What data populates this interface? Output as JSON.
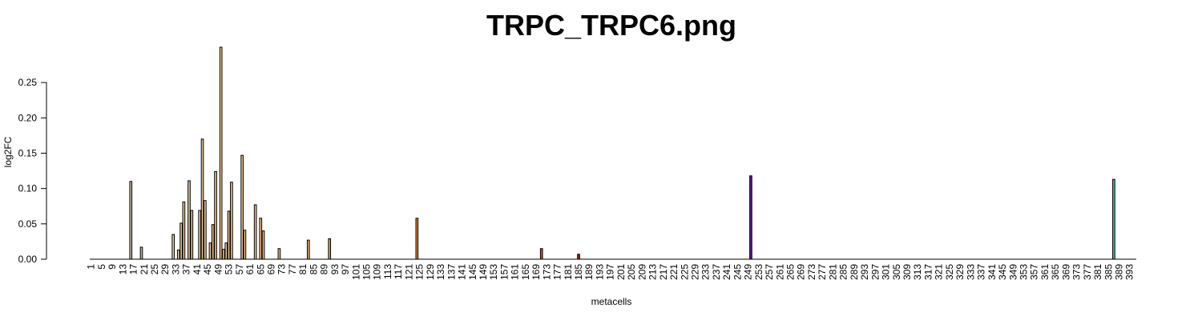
{
  "chart_data": {
    "type": "bar",
    "title": "TRPC_TRPC6.png",
    "xlabel": "metacells",
    "ylabel": "log2FC",
    "n_categories": 395,
    "x_tick_labels": [
      "1",
      "5",
      "9",
      "13",
      "17",
      "21",
      "25",
      "29",
      "33",
      "37",
      "41",
      "45",
      "49",
      "53",
      "57",
      "61",
      "65",
      "69",
      "73",
      "77",
      "81",
      "85",
      "89",
      "93",
      "97",
      "101",
      "105",
      "109",
      "113",
      "117",
      "121",
      "125",
      "129",
      "133",
      "137",
      "141",
      "145",
      "149",
      "153",
      "157",
      "161",
      "165",
      "169",
      "173",
      "177",
      "181",
      "185",
      "189",
      "193",
      "197",
      "201",
      "205",
      "209",
      "213",
      "217",
      "221",
      "225",
      "229",
      "233",
      "237",
      "241",
      "245",
      "249",
      "253",
      "257",
      "261",
      "265",
      "269",
      "273",
      "277",
      "281",
      "285",
      "289",
      "293",
      "297",
      "301",
      "305",
      "309",
      "313",
      "317",
      "321",
      "325",
      "329",
      "333",
      "337",
      "341",
      "345",
      "349",
      "353",
      "357",
      "361",
      "365",
      "369",
      "373",
      "377",
      "381",
      "385",
      "389",
      "393"
    ],
    "y_ticks": [
      "0.00",
      "0.05",
      "0.10",
      "0.15",
      "0.20",
      "0.25"
    ],
    "ylim": [
      0,
      0.3
    ],
    "grid": false,
    "legend": "none",
    "bars": [
      {
        "x": 16,
        "value": 0.11,
        "color": "#c8b9a3"
      },
      {
        "x": 20,
        "value": 0.017,
        "color": "#c6b59b"
      },
      {
        "x": 32,
        "value": 0.035,
        "color": "#e9c79c"
      },
      {
        "x": 34,
        "value": 0.013,
        "color": "#e9c79c"
      },
      {
        "x": 35,
        "value": 0.051,
        "color": "#e9c69a"
      },
      {
        "x": 36,
        "value": 0.081,
        "color": "#eac69a"
      },
      {
        "x": 38,
        "value": 0.111,
        "color": "#eac698"
      },
      {
        "x": 39,
        "value": 0.069,
        "color": "#eac698"
      },
      {
        "x": 42,
        "value": 0.069,
        "color": "#ebc696"
      },
      {
        "x": 43,
        "value": 0.17,
        "color": "#ebc596"
      },
      {
        "x": 44,
        "value": 0.083,
        "color": "#ebc595"
      },
      {
        "x": 46,
        "value": 0.023,
        "color": "#ebc594"
      },
      {
        "x": 47,
        "value": 0.049,
        "color": "#ecc493"
      },
      {
        "x": 48,
        "value": 0.124,
        "color": "#ecc492"
      },
      {
        "x": 50,
        "value": 0.3,
        "color": "#ecc491"
      },
      {
        "x": 51,
        "value": 0.014,
        "color": "#ecc390"
      },
      {
        "x": 52,
        "value": 0.023,
        "color": "#edc38f"
      },
      {
        "x": 53,
        "value": 0.068,
        "color": "#edc38e"
      },
      {
        "x": 54,
        "value": 0.109,
        "color": "#edc28d"
      },
      {
        "x": 58,
        "value": 0.147,
        "color": "#eebf88"
      },
      {
        "x": 59,
        "value": 0.041,
        "color": "#eebf87"
      },
      {
        "x": 63,
        "value": 0.077,
        "color": "#eebd83"
      },
      {
        "x": 65,
        "value": 0.058,
        "color": "#efbc81"
      },
      {
        "x": 66,
        "value": 0.04,
        "color": "#efbb80"
      },
      {
        "x": 72,
        "value": 0.015,
        "color": "#efb97a"
      },
      {
        "x": 83,
        "value": 0.027,
        "color": "#e8a560"
      },
      {
        "x": 91,
        "value": 0.029,
        "color": "#e39c55"
      },
      {
        "x": 124,
        "value": 0.058,
        "color": "#d88832"
      },
      {
        "x": 171,
        "value": 0.015,
        "color": "#d2521a"
      },
      {
        "x": 185,
        "value": 0.007,
        "color": "#c21f16"
      },
      {
        "x": 250,
        "value": 0.118,
        "color": "#6a0dad"
      },
      {
        "x": 387,
        "value": 0.113,
        "color": "#2ec7a6"
      }
    ]
  }
}
